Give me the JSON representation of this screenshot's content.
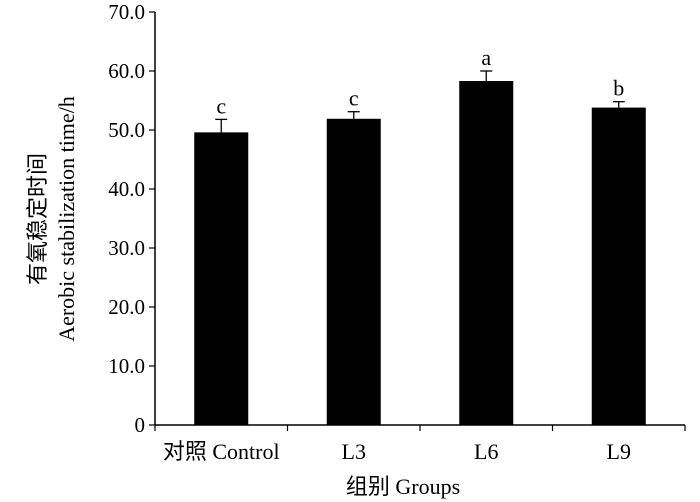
{
  "chart_data": {
    "type": "bar",
    "categories": [
      "对照 Control",
      "L3",
      "L6",
      "L9"
    ],
    "values": [
      49.6,
      51.9,
      58.3,
      53.8
    ],
    "errors": [
      2.2,
      1.2,
      1.7,
      1.0
    ],
    "significance": [
      "c",
      "c",
      "a",
      "b"
    ],
    "xlabel": "组别 Groups",
    "ylabel_line1": "有氧稳定时间",
    "ylabel_line2": "Aerobic stabilization time/h",
    "ylim": [
      0,
      70
    ],
    "y_ticks": [
      "0",
      "10.0",
      "20.0",
      "30.0",
      "40.0",
      "50.0",
      "60.0",
      "70.0"
    ],
    "y_tick_values": [
      0,
      10,
      20,
      30,
      40,
      50,
      60,
      70
    ],
    "grid": false,
    "bar_color": "#000000"
  }
}
